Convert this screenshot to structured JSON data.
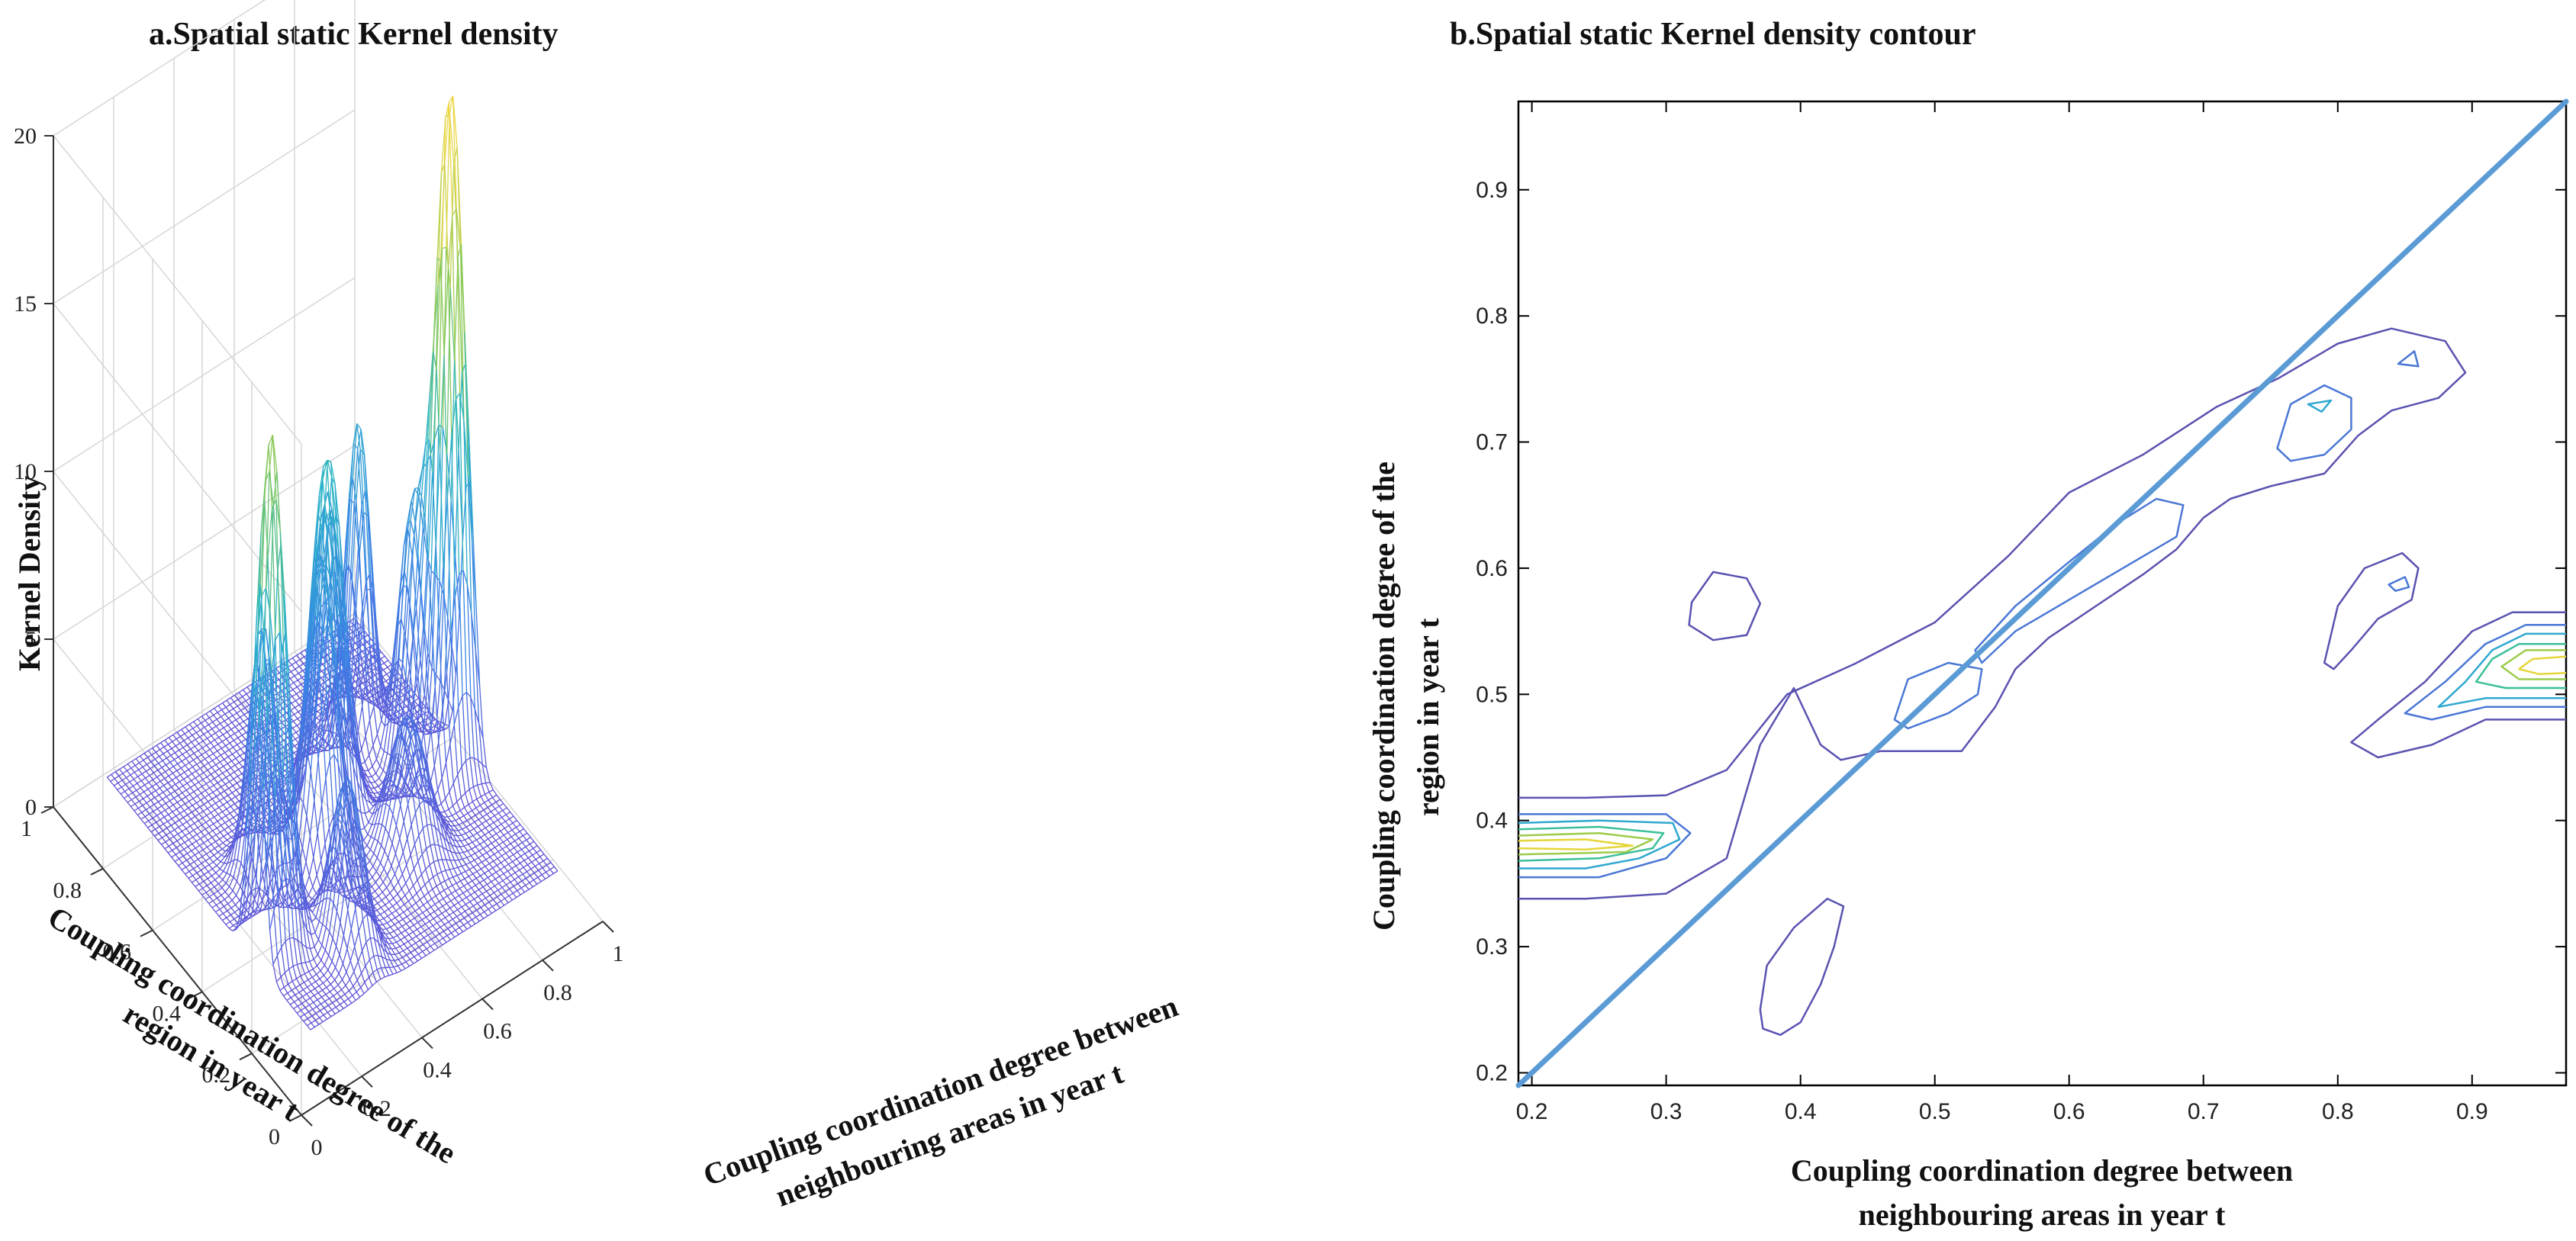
{
  "chart_data": [
    {
      "type": "surface",
      "title": "a.Spatial static Kernel density",
      "xlabel_lines": [
        "Coupling coordination degree between",
        "neighbouring areas in year t"
      ],
      "ylabel_lines": [
        "Coupling coordination degree of the",
        "region in year t"
      ],
      "zlabel": "Kernel Density",
      "xlim": [
        0,
        1
      ],
      "ylim": [
        0,
        1
      ],
      "zlim": [
        0,
        20
      ],
      "xticks": [
        "0",
        "0.2",
        "0.4",
        "0.6",
        "0.8",
        "1"
      ],
      "yticks": [
        "0",
        "0.2",
        "0.4",
        "0.6",
        "0.8",
        "1"
      ],
      "zticks": [
        "0",
        "5",
        "10",
        "15",
        "20"
      ],
      "grid": true,
      "peaks": [
        {
          "x": 0.22,
          "y": 0.39,
          "z": 15.5,
          "sx": 0.045,
          "sy": 0.03
        },
        {
          "x": 0.93,
          "y": 0.53,
          "z": 20.5,
          "sx": 0.045,
          "sy": 0.03
        },
        {
          "x": 0.55,
          "y": 0.56,
          "z": 11.0,
          "sx": 0.05,
          "sy": 0.03
        },
        {
          "x": 0.34,
          "y": 0.57,
          "z": 7.5,
          "sx": 0.035,
          "sy": 0.035
        },
        {
          "x": 0.48,
          "y": 0.5,
          "z": 8.0,
          "sx": 0.04,
          "sy": 0.035
        },
        {
          "x": 0.62,
          "y": 0.65,
          "z": 9.0,
          "sx": 0.04,
          "sy": 0.035
        },
        {
          "x": 0.79,
          "y": 0.73,
          "z": 9.5,
          "sx": 0.03,
          "sy": 0.035
        },
        {
          "x": 0.85,
          "y": 0.59,
          "z": 7.5,
          "sx": 0.03,
          "sy": 0.04
        },
        {
          "x": 0.4,
          "y": 0.3,
          "z": 5.0,
          "sx": 0.035,
          "sy": 0.05
        },
        {
          "x": 0.7,
          "y": 0.42,
          "z": 4.0,
          "sx": 0.05,
          "sy": 0.05
        }
      ]
    },
    {
      "type": "contour",
      "title": "b.Spatial static Kernel density contour",
      "xlabel_lines": [
        "Coupling coordination degree between",
        "neighbouring areas in year t"
      ],
      "ylabel_lines": [
        "Coupling coordination degree of the",
        "region in year t"
      ],
      "xlim": [
        0.19,
        0.97
      ],
      "ylim": [
        0.19,
        0.97
      ],
      "xticks": [
        "0.2",
        "0.3",
        "0.4",
        "0.5",
        "0.6",
        "0.7",
        "0.8",
        "0.9"
      ],
      "yticks": [
        "0.2",
        "0.3",
        "0.4",
        "0.5",
        "0.6",
        "0.7",
        "0.8",
        "0.9"
      ],
      "reference_line": {
        "from": [
          0.19,
          0.19
        ],
        "to": [
          0.97,
          0.97
        ],
        "color": "#5b9bd5"
      },
      "level_colors": [
        "#5a52b0",
        "#4a77d6",
        "#2fa8cf",
        "#3cbf9a",
        "#9ccc4a",
        "#e6d53a"
      ],
      "contours": [
        {
          "level": 1,
          "points": [
            [
              0.19,
              0.418
            ],
            [
              0.24,
              0.418
            ],
            [
              0.3,
              0.42
            ],
            [
              0.345,
              0.44
            ],
            [
              0.39,
              0.5
            ],
            [
              0.44,
              0.524
            ],
            [
              0.5,
              0.557
            ],
            [
              0.555,
              0.61
            ],
            [
              0.6,
              0.66
            ],
            [
              0.655,
              0.69
            ],
            [
              0.71,
              0.728
            ],
            [
              0.755,
              0.75
            ],
            [
              0.8,
              0.778
            ],
            [
              0.84,
              0.79
            ],
            [
              0.88,
              0.78
            ],
            [
              0.895,
              0.755
            ],
            [
              0.875,
              0.735
            ],
            [
              0.84,
              0.725
            ],
            [
              0.815,
              0.705
            ],
            [
              0.79,
              0.675
            ],
            [
              0.75,
              0.665
            ],
            [
              0.72,
              0.655
            ],
            [
              0.7,
              0.64
            ],
            [
              0.68,
              0.615
            ],
            [
              0.655,
              0.595
            ],
            [
              0.62,
              0.57
            ],
            [
              0.585,
              0.545
            ],
            [
              0.56,
              0.52
            ],
            [
              0.545,
              0.49
            ],
            [
              0.52,
              0.455
            ],
            [
              0.46,
              0.455
            ],
            [
              0.43,
              0.448
            ],
            [
              0.415,
              0.46
            ],
            [
              0.395,
              0.505
            ],
            [
              0.37,
              0.46
            ],
            [
              0.345,
              0.37
            ],
            [
              0.3,
              0.342
            ],
            [
              0.24,
              0.338
            ],
            [
              0.19,
              0.338
            ]
          ],
          "closed": false
        },
        {
          "level": 1,
          "points": [
            [
              0.319,
              0.573
            ],
            [
              0.335,
              0.597
            ],
            [
              0.36,
              0.592
            ],
            [
              0.37,
              0.572
            ],
            [
              0.36,
              0.547
            ],
            [
              0.335,
              0.543
            ],
            [
              0.317,
              0.555
            ]
          ],
          "closed": true
        },
        {
          "level": 1,
          "points": [
            [
              0.37,
              0.25
            ],
            [
              0.375,
              0.285
            ],
            [
              0.395,
              0.315
            ],
            [
              0.42,
              0.338
            ],
            [
              0.432,
              0.332
            ],
            [
              0.425,
              0.3
            ],
            [
              0.415,
              0.27
            ],
            [
              0.4,
              0.24
            ],
            [
              0.385,
              0.23
            ],
            [
              0.372,
              0.235
            ]
          ],
          "closed": true
        },
        {
          "level": 1,
          "points": [
            [
              0.79,
              0.525
            ],
            [
              0.8,
              0.57
            ],
            [
              0.82,
              0.6
            ],
            [
              0.848,
              0.612
            ],
            [
              0.86,
              0.6
            ],
            [
              0.855,
              0.575
            ],
            [
              0.83,
              0.56
            ],
            [
              0.81,
              0.535
            ],
            [
              0.797,
              0.52
            ]
          ],
          "closed": true
        },
        {
          "level": 1,
          "points": [
            [
              0.97,
              0.565
            ],
            [
              0.93,
              0.565
            ],
            [
              0.9,
              0.55
            ],
            [
              0.865,
              0.51
            ],
            [
              0.83,
              0.48
            ],
            [
              0.81,
              0.462
            ],
            [
              0.83,
              0.45
            ],
            [
              0.87,
              0.46
            ],
            [
              0.91,
              0.48
            ],
            [
              0.97,
              0.48
            ]
          ],
          "closed": false
        },
        {
          "level": 2,
          "points": [
            [
              0.19,
              0.405
            ],
            [
              0.25,
              0.405
            ],
            [
              0.3,
              0.405
            ],
            [
              0.318,
              0.39
            ],
            [
              0.3,
              0.37
            ],
            [
              0.25,
              0.355
            ],
            [
              0.19,
              0.355
            ]
          ],
          "closed": false
        },
        {
          "level": 3,
          "points": [
            [
              0.19,
              0.398
            ],
            [
              0.25,
              0.4
            ],
            [
              0.305,
              0.398
            ],
            [
              0.31,
              0.385
            ],
            [
              0.28,
              0.37
            ],
            [
              0.24,
              0.362
            ],
            [
              0.19,
              0.362
            ]
          ],
          "closed": false
        },
        {
          "level": 4,
          "points": [
            [
              0.19,
              0.393
            ],
            [
              0.25,
              0.395
            ],
            [
              0.298,
              0.39
            ],
            [
              0.29,
              0.378
            ],
            [
              0.25,
              0.37
            ],
            [
              0.19,
              0.368
            ]
          ],
          "closed": false
        },
        {
          "level": 5,
          "points": [
            [
              0.19,
              0.388
            ],
            [
              0.25,
              0.39
            ],
            [
              0.29,
              0.385
            ],
            [
              0.27,
              0.375
            ],
            [
              0.19,
              0.373
            ]
          ],
          "closed": false
        },
        {
          "level": 6,
          "points": [
            [
              0.19,
              0.384
            ],
            [
              0.24,
              0.385
            ],
            [
              0.275,
              0.38
            ],
            [
              0.24,
              0.377
            ],
            [
              0.19,
              0.378
            ]
          ],
          "closed": false
        },
        {
          "level": 2,
          "points": [
            [
              0.47,
              0.48
            ],
            [
              0.48,
              0.512
            ],
            [
              0.51,
              0.525
            ],
            [
              0.535,
              0.52
            ],
            [
              0.532,
              0.5
            ],
            [
              0.51,
              0.485
            ],
            [
              0.48,
              0.473
            ]
          ],
          "closed": true
        },
        {
          "level": 2,
          "points": [
            [
              0.53,
              0.535
            ],
            [
              0.56,
              0.57
            ],
            [
              0.6,
              0.605
            ],
            [
              0.635,
              0.635
            ],
            [
              0.665,
              0.655
            ],
            [
              0.685,
              0.65
            ],
            [
              0.68,
              0.625
            ],
            [
              0.64,
              0.6
            ],
            [
              0.6,
              0.575
            ],
            [
              0.56,
              0.55
            ],
            [
              0.535,
              0.525
            ]
          ],
          "closed": true
        },
        {
          "level": 2,
          "points": [
            [
              0.755,
              0.695
            ],
            [
              0.765,
              0.73
            ],
            [
              0.79,
              0.745
            ],
            [
              0.81,
              0.735
            ],
            [
              0.81,
              0.71
            ],
            [
              0.79,
              0.69
            ],
            [
              0.765,
              0.685
            ]
          ],
          "closed": true
        },
        {
          "level": 3,
          "points": [
            [
              0.778,
              0.73
            ],
            [
              0.795,
              0.733
            ],
            [
              0.788,
              0.724
            ]
          ],
          "closed": true
        },
        {
          "level": 2,
          "points": [
            [
              0.845,
              0.762
            ],
            [
              0.857,
              0.772
            ],
            [
              0.86,
              0.76
            ]
          ],
          "closed": true
        },
        {
          "level": 2,
          "points": [
            [
              0.838,
              0.587
            ],
            [
              0.85,
              0.593
            ],
            [
              0.853,
              0.585
            ],
            [
              0.843,
              0.582
            ]
          ],
          "closed": true
        },
        {
          "level": 2,
          "points": [
            [
              0.97,
              0.555
            ],
            [
              0.94,
              0.555
            ],
            [
              0.91,
              0.54
            ],
            [
              0.88,
              0.51
            ],
            [
              0.85,
              0.485
            ],
            [
              0.87,
              0.48
            ],
            [
              0.91,
              0.49
            ],
            [
              0.97,
              0.49
            ]
          ],
          "closed": false
        },
        {
          "level": 3,
          "points": [
            [
              0.97,
              0.548
            ],
            [
              0.94,
              0.548
            ],
            [
              0.915,
              0.535
            ],
            [
              0.895,
              0.51
            ],
            [
              0.875,
              0.49
            ],
            [
              0.91,
              0.497
            ],
            [
              0.97,
              0.497
            ]
          ],
          "closed": false
        },
        {
          "level": 4,
          "points": [
            [
              0.97,
              0.54
            ],
            [
              0.935,
              0.54
            ],
            [
              0.915,
              0.528
            ],
            [
              0.903,
              0.51
            ],
            [
              0.925,
              0.505
            ],
            [
              0.97,
              0.505
            ]
          ],
          "closed": false
        },
        {
          "level": 5,
          "points": [
            [
              0.97,
              0.535
            ],
            [
              0.94,
              0.535
            ],
            [
              0.922,
              0.522
            ],
            [
              0.935,
              0.512
            ],
            [
              0.97,
              0.512
            ]
          ],
          "closed": false
        },
        {
          "level": 6,
          "points": [
            [
              0.97,
              0.53
            ],
            [
              0.945,
              0.528
            ],
            [
              0.935,
              0.52
            ],
            [
              0.95,
              0.516
            ],
            [
              0.97,
              0.517
            ]
          ],
          "closed": false
        }
      ]
    }
  ]
}
